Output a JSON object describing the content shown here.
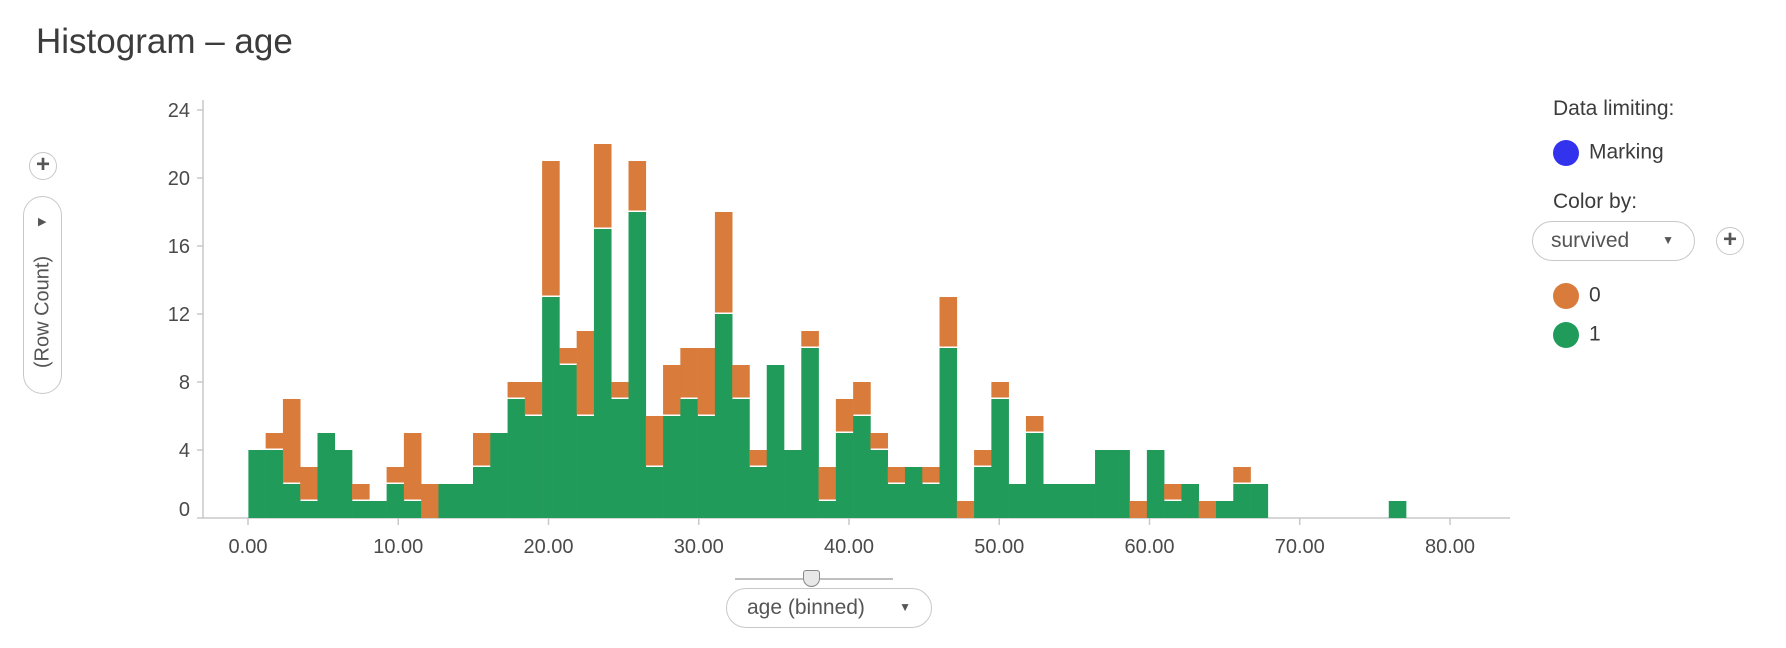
{
  "title": "Histogram – age",
  "y_axis_selector": {
    "label": "(Row Count)"
  },
  "x_axis_selector": {
    "label": "age (binned)"
  },
  "legend": {
    "data_limiting_label": "Data limiting:",
    "marking_label": "Marking",
    "marking_color": "#3333ee",
    "color_by_label": "Color by:",
    "color_by_value": "survived",
    "items": [
      {
        "label": "0",
        "color": "#d97b3a"
      },
      {
        "label": "1",
        "color": "#219b5a"
      }
    ]
  },
  "colors": {
    "survived_0": "#d97b3a",
    "survived_1": "#219b5a"
  },
  "chart_data": {
    "type": "bar",
    "stacked": true,
    "bin_width": 1.15,
    "x": [
      0.6,
      1.75,
      2.9,
      4.05,
      5.2,
      6.35,
      7.5,
      8.65,
      9.8,
      10.95,
      12.1,
      13.25,
      14.4,
      15.55,
      16.7,
      17.85,
      19.0,
      20.15,
      21.3,
      22.45,
      23.6,
      24.75,
      25.9,
      27.05,
      28.2,
      29.35,
      30.5,
      31.65,
      32.8,
      33.95,
      35.1,
      36.25,
      37.4,
      38.55,
      39.7,
      40.85,
      42.0,
      43.15,
      44.3,
      45.45,
      46.6,
      47.75,
      48.9,
      50.05,
      51.2,
      52.35,
      53.5,
      54.65,
      55.8,
      56.95,
      58.1,
      59.25,
      60.4,
      61.55,
      62.7,
      63.85,
      65.0,
      66.15,
      67.3,
      68.45,
      69.6,
      70.75,
      71.9,
      73.05,
      74.2,
      75.35,
      76.5
    ],
    "series": [
      {
        "name": "1",
        "values": [
          4,
          4,
          2,
          1,
          5,
          4,
          1,
          1,
          2,
          1,
          0,
          2,
          2,
          3,
          5,
          7,
          6,
          13,
          9,
          6,
          17,
          7,
          18,
          3,
          6,
          7,
          6,
          12,
          7,
          3,
          9,
          4,
          10,
          1,
          5,
          6,
          4,
          2,
          3,
          2,
          10,
          0,
          3,
          7,
          2,
          5,
          2,
          2,
          2,
          4,
          4,
          0,
          4,
          1,
          2,
          0,
          1,
          2,
          2,
          0,
          0,
          0,
          0,
          0,
          0,
          0,
          1
        ]
      },
      {
        "name": "0",
        "values": [
          0,
          1,
          5,
          2,
          0,
          0,
          1,
          0,
          1,
          4,
          2,
          0,
          0,
          2,
          0,
          1,
          2,
          8,
          1,
          5,
          5,
          1,
          3,
          3,
          3,
          3,
          4,
          6,
          2,
          1,
          0,
          0,
          1,
          2,
          2,
          2,
          1,
          1,
          0,
          1,
          3,
          1,
          1,
          1,
          0,
          1,
          0,
          0,
          0,
          0,
          0,
          1,
          0,
          1,
          0,
          1,
          0,
          1,
          0,
          0,
          0,
          0,
          0,
          0,
          0,
          0,
          0
        ]
      }
    ],
    "xlim": [
      0,
      80
    ],
    "ylim": [
      0,
      24
    ],
    "x_ticks": [
      "0.00",
      "10.00",
      "20.00",
      "30.00",
      "40.00",
      "50.00",
      "60.00",
      "70.00",
      "80.00"
    ],
    "y_ticks": [
      "0",
      "4",
      "8",
      "12",
      "16",
      "20",
      "24"
    ],
    "xlabel": "age (binned)",
    "ylabel": "(Row Count)",
    "grid": false,
    "legend_position": "right"
  }
}
